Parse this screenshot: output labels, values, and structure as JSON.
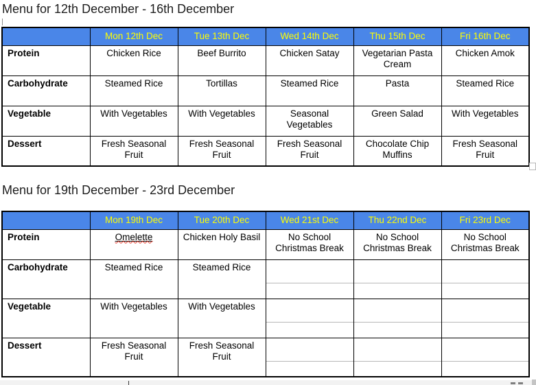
{
  "theme": {
    "header_background": "#4a86e8",
    "header_text_color": "#ffff00",
    "table_border_color": "#000000",
    "split_line_color": "#b7b7b7",
    "spellcheck_color": "#e2392b"
  },
  "menus": [
    {
      "title": "Menu for 12th December - 16th December",
      "columns": [
        "Mon 12th Dec",
        "Tue 13th Dec",
        "Wed 14th Dec",
        "Thu 15th Dec",
        "Fri 16th Dec"
      ],
      "rows": [
        {
          "label": "Protein",
          "cells": [
            "Chicken Rice",
            "Beef Burrito",
            "Chicken Satay",
            "Vegetarian Pasta\nCream",
            "Chicken Amok"
          ]
        },
        {
          "label": "Carbohydrate",
          "cells": [
            "Steamed Rice",
            "Tortillas",
            "Steamed Rice",
            "Pasta",
            "Steamed Rice"
          ]
        },
        {
          "label": "Vegetable",
          "cells": [
            "With Vegetables",
            "With Vegetables",
            "Seasonal\nVegetables",
            "Green Salad",
            "With Vegetables"
          ]
        },
        {
          "label": "Dessert",
          "cells": [
            "Fresh Seasonal\nFruit",
            "Fresh Seasonal\nFruit",
            "Fresh Seasonal\nFruit",
            "Chocolate Chip\nMuffins",
            "Fresh Seasonal\nFruit"
          ]
        }
      ]
    },
    {
      "title": "Menu for 19th December - 23rd December",
      "columns": [
        "Mon 19th Dec",
        "Tue 20th Dec",
        "Wed 21st Dec",
        "Thu 22nd Dec",
        "Fri 23rd Dec"
      ],
      "spellcheck_flagged": "Omelette",
      "rows": [
        {
          "label": "Protein",
          "cells": [
            "Omelette",
            "Chicken Holy Basil",
            "No School\nChristmas Break",
            "No School\nChristmas Break",
            "No School\nChristmas Break"
          ]
        },
        {
          "label": "Carbohydrate",
          "cells": [
            "Steamed Rice",
            "Steamed Rice",
            "",
            "",
            ""
          ]
        },
        {
          "label": "Vegetable",
          "cells": [
            "With Vegetables",
            "With Vegetables",
            "",
            "",
            ""
          ]
        },
        {
          "label": "Dessert",
          "cells": [
            "Fresh Seasonal\nFruit",
            "Fresh Seasonal\nFruit",
            "",
            "",
            ""
          ]
        }
      ]
    }
  ]
}
